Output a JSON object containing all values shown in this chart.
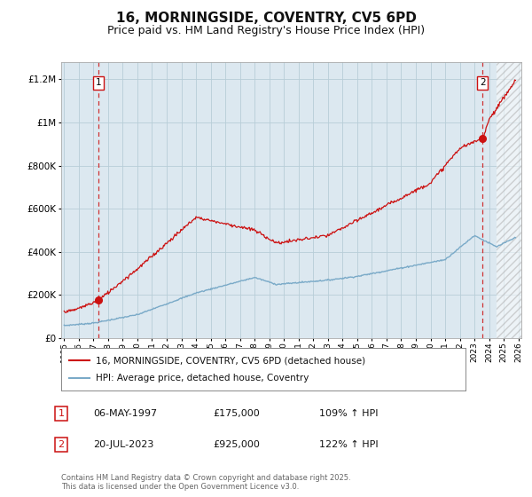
{
  "title": "16, MORNINGSIDE, COVENTRY, CV5 6PD",
  "subtitle": "Price paid vs. HM Land Registry's House Price Index (HPI)",
  "title_fontsize": 11,
  "subtitle_fontsize": 9,
  "plot_bg_color": "#dce8f0",
  "grid_color": "#b8cdd8",
  "xlim_start": 1994.8,
  "xlim_end": 2026.2,
  "ylim_min": 0,
  "ylim_max": 1280000,
  "sale1_date": 1997.35,
  "sale1_price": 175000,
  "sale2_date": 2023.55,
  "sale2_price": 925000,
  "red_line_color": "#cc1111",
  "blue_line_color": "#7aaac8",
  "legend_label_red": "16, MORNINGSIDE, COVENTRY, CV5 6PD (detached house)",
  "legend_label_blue": "HPI: Average price, detached house, Coventry",
  "annotation1_date": "06-MAY-1997",
  "annotation1_price": "£175,000",
  "annotation1_hpi": "109% ↑ HPI",
  "annotation2_date": "20-JUL-2023",
  "annotation2_price": "£925,000",
  "annotation2_hpi": "122% ↑ HPI",
  "footer": "Contains HM Land Registry data © Crown copyright and database right 2025.\nThis data is licensed under the Open Government Licence v3.0.",
  "hatch_start": 2024.5
}
